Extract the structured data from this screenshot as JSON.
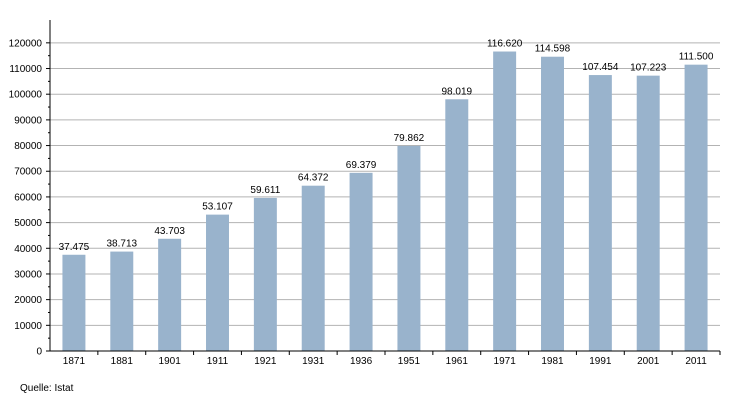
{
  "chart_data": {
    "type": "bar",
    "title": "",
    "xlabel": "",
    "ylabel": "",
    "categories": [
      "1871",
      "1881",
      "1901",
      "1911",
      "1921",
      "1931",
      "1936",
      "1951",
      "1961",
      "1971",
      "1981",
      "1991",
      "2001",
      "2011"
    ],
    "values": [
      37475,
      38713,
      43703,
      53107,
      59611,
      64372,
      69379,
      79862,
      98019,
      116620,
      114598,
      107454,
      107223,
      111500
    ],
    "data_labels": [
      "37.475",
      "38.713",
      "43.703",
      "53.107",
      "59.611",
      "64.372",
      "69.379",
      "79.862",
      "98.019",
      "116.620",
      "114.598",
      "107.454",
      "107.223",
      "111.500"
    ],
    "ylim": [
      0,
      125000
    ],
    "y_ticks": [
      0,
      10000,
      20000,
      30000,
      40000,
      50000,
      60000,
      70000,
      80000,
      90000,
      100000,
      110000,
      120000
    ],
    "y_tick_labels": [
      "0",
      "10000",
      "20000",
      "30000",
      "40000",
      "50000",
      "60000",
      "70000",
      "80000",
      "90000",
      "100000",
      "110000",
      "120000"
    ],
    "grid": true,
    "legend": "none",
    "colors": {
      "bar": "#99b3cc",
      "grid": "#b3b3b3",
      "axis": "#000000"
    }
  },
  "source_label": "Quelle: Istat"
}
